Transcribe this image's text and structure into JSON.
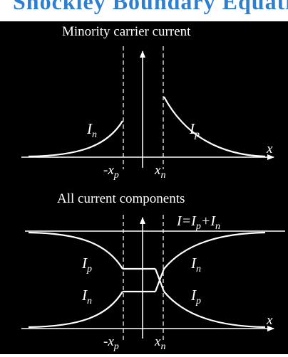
{
  "banner": {
    "text": "Shockley Boundary Equations",
    "color": "#2f7fd0"
  },
  "top_panel": {
    "title": "Minority carrier current",
    "label_left": "I",
    "label_left_sub": "n",
    "label_right": "I",
    "label_right_sub": "p",
    "axis_x": "x",
    "tick_left_main": "-x",
    "tick_left_sub": "p",
    "tick_right_main": "x",
    "tick_right_sub": "n"
  },
  "bottom_panel": {
    "title": "All current components",
    "total_main": "I=I",
    "total_sub1": "p",
    "total_plus": "+I",
    "total_sub2": "n",
    "left_upper_main": "I",
    "left_upper_sub": "p",
    "left_lower_main": "I",
    "left_lower_sub": "n",
    "right_upper_main": "I",
    "right_upper_sub": "n",
    "right_lower_main": "I",
    "right_lower_sub": "p",
    "axis_x": "x",
    "tick_left_main": "-x",
    "tick_left_sub": "p",
    "tick_right_main": "x",
    "tick_right_sub": "n"
  },
  "colors": {
    "background": "#000000",
    "foreground": "#ffffff"
  }
}
